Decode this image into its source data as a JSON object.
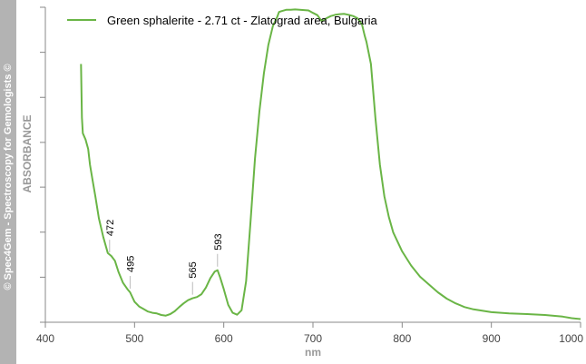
{
  "copyright": "© Spec4Gem - Spectroscopy for Gemologists ©",
  "chart_data": {
    "type": "line",
    "title": "",
    "xlabel": "nm",
    "ylabel": "ABSORBANCE",
    "xlim": [
      400,
      1000
    ],
    "ylim": [
      0,
      100
    ],
    "x_ticks": [
      400,
      500,
      600,
      700,
      800,
      900,
      1000
    ],
    "y_ticks": [
      0,
      14.3,
      28.6,
      42.9,
      57.1,
      71.4,
      85.7,
      100
    ],
    "grid": false,
    "legend_position": "top-left",
    "series": [
      {
        "name": "Green sphalerite - 2.71 ct - Zlatograd area, Bulgaria",
        "color": "#6ab546",
        "x": [
          440,
          441,
          442,
          445,
          448,
          450,
          453,
          456,
          460,
          465,
          470,
          474,
          478,
          482,
          487,
          492,
          495,
          500,
          505,
          510,
          515,
          520,
          525,
          530,
          535,
          540,
          545,
          550,
          555,
          560,
          565,
          570,
          575,
          580,
          585,
          590,
          593,
          596,
          600,
          605,
          610,
          615,
          620,
          625,
          630,
          635,
          640,
          645,
          650,
          655,
          660,
          662,
          665,
          670,
          675,
          680,
          685,
          690,
          695,
          700,
          705,
          710,
          715,
          720,
          725,
          730,
          735,
          740,
          745,
          750,
          755,
          758,
          760,
          765,
          770,
          775,
          780,
          785,
          790,
          800,
          810,
          820,
          830,
          840,
          850,
          860,
          870,
          880,
          900,
          920,
          940,
          960,
          980,
          990,
          1000
        ],
        "y": [
          82,
          65,
          60,
          58,
          55,
          50,
          45,
          40,
          33,
          27,
          22,
          21,
          19.5,
          16,
          12.5,
          10.5,
          9.5,
          6.5,
          5,
          4.2,
          3.4,
          3,
          2.8,
          2.3,
          2.1,
          2.6,
          3.5,
          4.8,
          6,
          7,
          7.6,
          8,
          8.9,
          11,
          14,
          16.1,
          16.5,
          14.2,
          10.5,
          5.5,
          3,
          2.4,
          3.8,
          13,
          32,
          52,
          67,
          79,
          88,
          94,
          97,
          98.5,
          98.8,
          99.2,
          99.2,
          99.3,
          99.2,
          99.1,
          99,
          98.2,
          97.5,
          95.5,
          96.5,
          97.2,
          97.6,
          97.8,
          97.9,
          97.6,
          97.2,
          96.5,
          94.5,
          91,
          89,
          82,
          65,
          50,
          40,
          33.5,
          28.5,
          22.5,
          18,
          14.5,
          12,
          9.5,
          7.5,
          6,
          4.8,
          4.1,
          3.2,
          2.8,
          2.6,
          2.3,
          1.8,
          1.3,
          1
        ]
      }
    ],
    "annotations": [
      {
        "label": "472",
        "x": 472,
        "y": 21
      },
      {
        "label": "495",
        "x": 495,
        "y": 9.5
      },
      {
        "label": "565",
        "x": 565,
        "y": 7.6
      },
      {
        "label": "593",
        "x": 593,
        "y": 16.5
      }
    ]
  }
}
